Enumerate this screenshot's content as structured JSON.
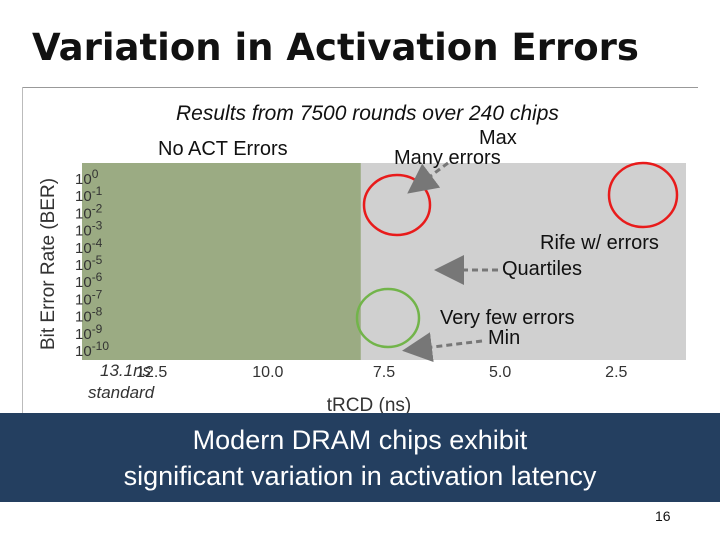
{
  "slide": {
    "title": "Variation in Activation Errors",
    "subtitle": "Results from 7500 rounds over 240 chips",
    "page_number": "16"
  },
  "annotations": {
    "no_act_errors": "No ACT Errors",
    "max": "Max",
    "many_errors": "Many errors",
    "rife_errors": "Rife w/ errors",
    "quartiles": "Quartiles",
    "very_few_errors": "Very few errors",
    "min": "Min",
    "standard_value": "13.1ns",
    "standard_label": "standard"
  },
  "banner": {
    "line1": "Modern DRAM chips exhibit",
    "line2": "significant variation in activation latency"
  },
  "colors": {
    "banner_bg": "#243f60",
    "no_error_region": "#9bab83",
    "plot_bg": "#d0d0d0",
    "red_circle": "#e81b1b",
    "green_circle": "#72b44a",
    "arrow_gray": "#777777"
  },
  "chart_data": {
    "type": "scatter",
    "xlabel": "tRCD (ns)",
    "ylabel": "Bit Error Rate (BER)",
    "x_ticks": [
      "12.5",
      "10.0",
      "7.5",
      "5.0",
      "2.5"
    ],
    "x_tick_values": [
      12.5,
      10.0,
      7.5,
      5.0,
      2.5
    ],
    "xlim": [
      14.0,
      1.0
    ],
    "x_reversed": true,
    "y_scale": "log",
    "y_tick_exponents": [
      0,
      -1,
      -2,
      -3,
      -4,
      -5,
      -6,
      -7,
      -8,
      -9,
      -10
    ],
    "y_tick_base": "10",
    "ylim_exponent": [
      -10,
      0
    ],
    "no_error_region_xrange": [
      14.0,
      8.0
    ],
    "standard_trcd": 13.1,
    "grid": false,
    "legend": "none"
  }
}
